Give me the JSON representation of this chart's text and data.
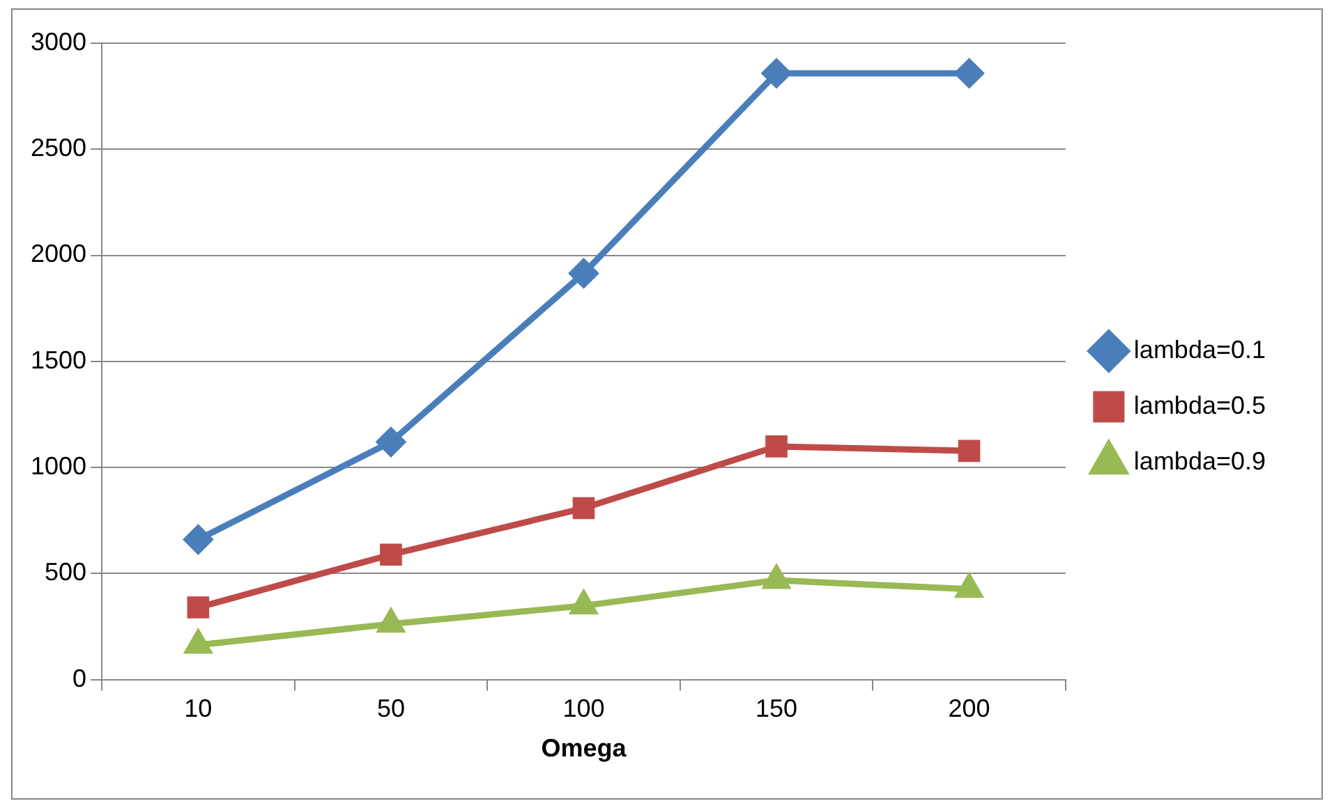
{
  "chart_data": {
    "type": "line",
    "xlabel": "Omega",
    "categories": [
      "10",
      "50",
      "100",
      "150",
      "200"
    ],
    "series": [
      {
        "name": "lambda=0.1",
        "color": "#4a7ebb",
        "marker": "diamond",
        "values": [
          660,
          1120,
          1915,
          2858,
          2858
        ]
      },
      {
        "name": "lambda=0.5",
        "color": "#be4b48",
        "marker": "square",
        "values": [
          340,
          589,
          808,
          1099,
          1078
        ]
      },
      {
        "name": "lambda=0.9",
        "color": "#98b954",
        "marker": "triangle",
        "values": [
          163,
          262,
          348,
          468,
          426
        ]
      }
    ],
    "ylim": [
      0,
      3000
    ],
    "yticks": [
      0,
      500,
      1000,
      1500,
      2000,
      2500,
      3000
    ],
    "grid": "y",
    "legend": "right"
  }
}
